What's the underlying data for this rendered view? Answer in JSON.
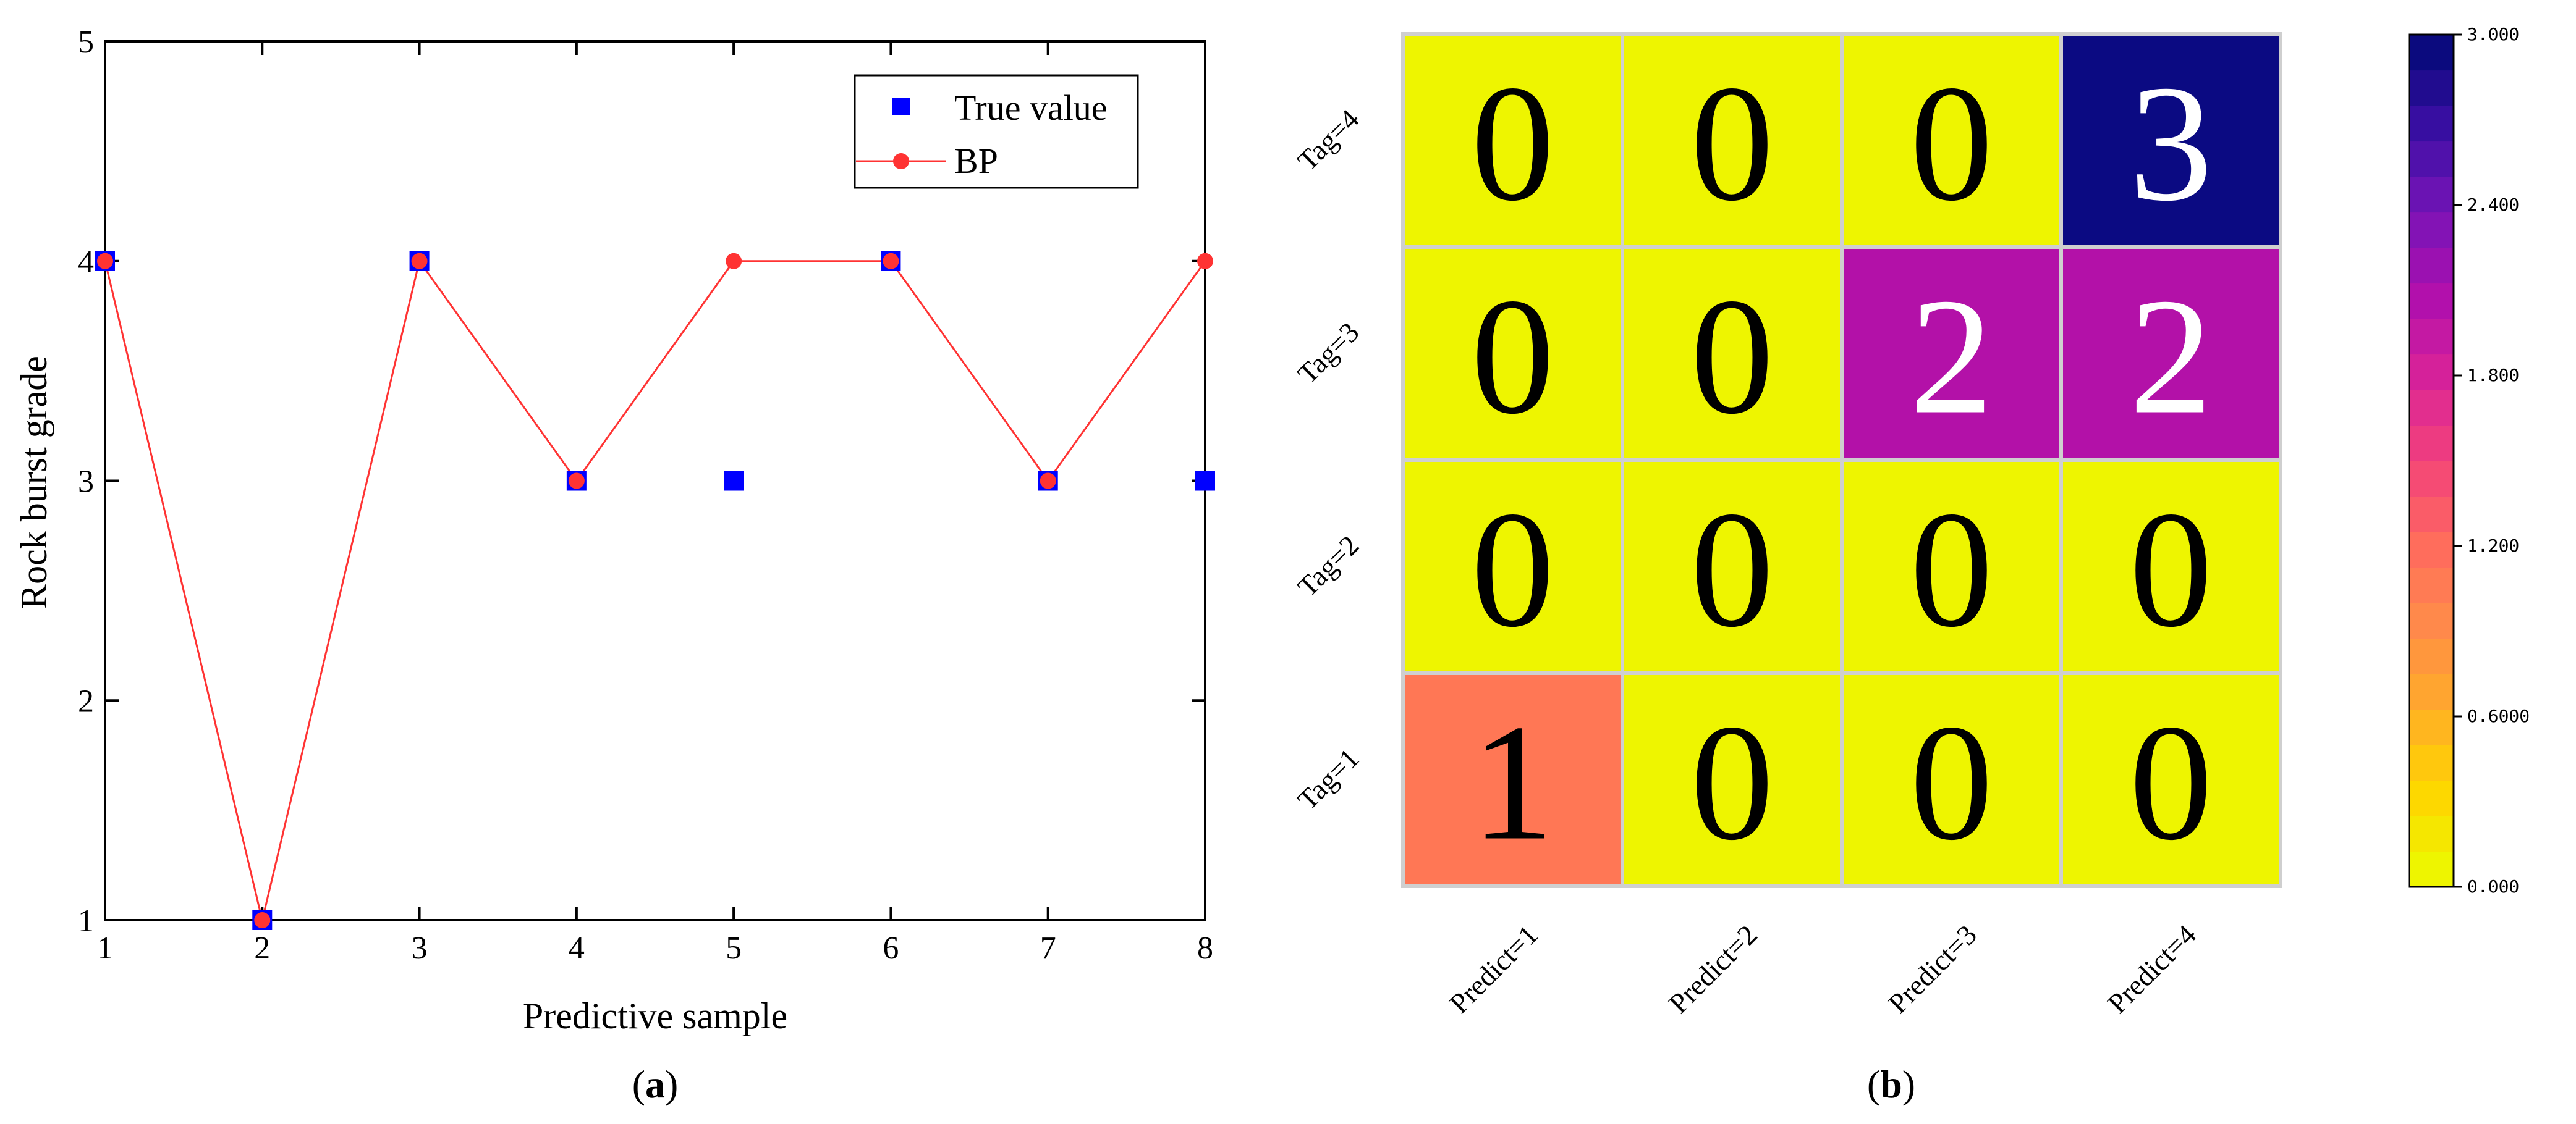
{
  "panels": {
    "a_label": "a",
    "b_label": "b"
  },
  "chart_data": [
    {
      "type": "scatter",
      "xlabel": "Predictive sample",
      "ylabel": "Rock burst grade",
      "xlim": [
        1,
        8
      ],
      "ylim": [
        1,
        5
      ],
      "xticks": [
        "1",
        "2",
        "3",
        "4",
        "5",
        "6",
        "7",
        "8"
      ],
      "yticks": [
        "1",
        "2",
        "3",
        "4",
        "5"
      ],
      "legend_position": "top-right",
      "series": [
        {
          "name": "True value",
          "marker": "square",
          "color": "#0000ff",
          "x": [
            1,
            2,
            3,
            4,
            5,
            6,
            7,
            8
          ],
          "y": [
            4,
            1,
            4,
            3,
            3,
            4,
            3,
            3
          ]
        },
        {
          "name": "BP",
          "marker": "circle-line",
          "color": "#ff3333",
          "x": [
            1,
            2,
            3,
            4,
            5,
            6,
            7,
            8
          ],
          "y": [
            4,
            1,
            4,
            3,
            4,
            4,
            3,
            4
          ]
        }
      ]
    },
    {
      "type": "heatmap",
      "rows": [
        "Tag=4",
        "Tag=3",
        "Tag=2",
        "Tag=1"
      ],
      "columns": [
        "Predict=1",
        "Predict=2",
        "Predict=3",
        "Predict=4"
      ],
      "values": [
        [
          0,
          0,
          0,
          3
        ],
        [
          0,
          0,
          2,
          2
        ],
        [
          0,
          0,
          0,
          0
        ],
        [
          1,
          0,
          0,
          0
        ]
      ],
      "colorbar": {
        "min": 0,
        "max": 3,
        "tick_labels": [
          "3.000",
          "2.400",
          "1.800",
          "1.200",
          "0.6000",
          "0.000"
        ],
        "tick_values": [
          3,
          2.4,
          1.8,
          1.2,
          0.6,
          0
        ],
        "stops": [
          "#eef500",
          "#ffd400",
          "#ffab2a",
          "#ff8a4a",
          "#ff6a5e",
          "#f2427a",
          "#d92398",
          "#b00fad",
          "#7a14b7",
          "#3e0fa6",
          "#0b0a7e"
        ]
      },
      "cell_colors": {
        "0": "#eef500",
        "1": "#ff7755",
        "2": "#b311a8",
        "3": "#0b0a82"
      }
    }
  ]
}
